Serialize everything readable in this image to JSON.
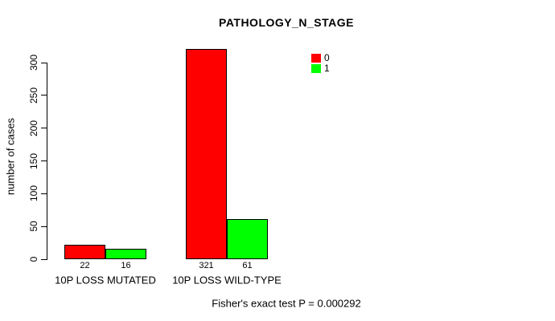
{
  "chart_data": {
    "type": "bar",
    "title": "PATHOLOGY_N_STAGE",
    "ylabel": "number of cases",
    "xlabel": "",
    "ylim": [
      0,
      300
    ],
    "yticks": [
      0,
      50,
      100,
      150,
      200,
      250,
      300
    ],
    "grid": false,
    "categories": [
      "10P LOSS MUTATED",
      "10P LOSS WILD-TYPE"
    ],
    "series": [
      {
        "name": "0",
        "color": "#ff0000",
        "values": [
          22,
          321
        ]
      },
      {
        "name": "1",
        "color": "#00ff00",
        "values": [
          16,
          61
        ]
      }
    ],
    "legend": {
      "position": "top-right",
      "entries": [
        {
          "label": "0",
          "color": "#ff0000"
        },
        {
          "label": "1",
          "color": "#00ff00"
        }
      ]
    },
    "footer": "Fisher's exact test P = 0.000292"
  },
  "colors": {
    "background": "#ffffff",
    "axis": "#000000",
    "text": "#000000",
    "bar_border": "#000000"
  }
}
